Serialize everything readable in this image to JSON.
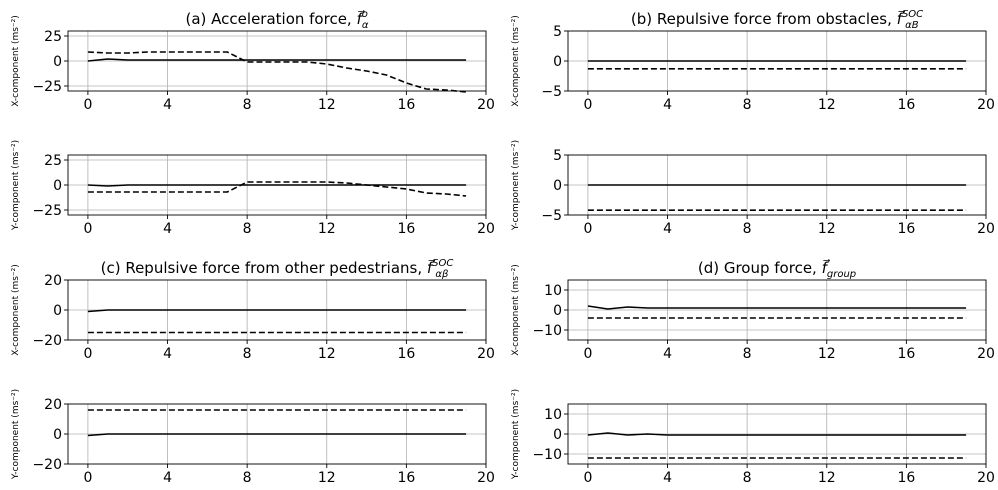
{
  "chart_data": [
    {
      "type": "line",
      "panel": "a",
      "title": "(a) Acceleration force, f⃗α⁰",
      "title_parts": {
        "prefix": "(a) Acceleration force, ",
        "symbol": "f",
        "sub": "α",
        "sup": "o"
      },
      "xlabel": "",
      "ylabel": "X-component (ms⁻²)",
      "xlim": [
        -1,
        20
      ],
      "ylim": [
        -30,
        30
      ],
      "grid": true,
      "xticks": [
        0,
        4,
        8,
        12,
        16,
        20
      ],
      "yticks": [
        25,
        0,
        -25
      ],
      "x": [
        0,
        1,
        2,
        3,
        4,
        5,
        6,
        7,
        8,
        9,
        10,
        11,
        12,
        13,
        14,
        15,
        16,
        17,
        18,
        19
      ],
      "series": [
        {
          "style": "solid",
          "values": [
            0,
            2,
            1,
            1,
            1,
            1,
            1,
            1,
            1,
            1,
            1,
            1,
            1,
            1,
            1,
            1,
            1,
            1,
            1,
            1
          ]
        },
        {
          "style": "dashed",
          "values": [
            9,
            8,
            8,
            9,
            9,
            9,
            9,
            9,
            -1,
            -1,
            -1,
            -1,
            -3,
            -7,
            -10,
            -14,
            -22,
            -28,
            -29,
            -31
          ]
        }
      ]
    },
    {
      "type": "line",
      "panel": "a",
      "xlabel": "",
      "ylabel": "Y-component (ms⁻²)",
      "xlim": [
        -1,
        20
      ],
      "ylim": [
        -30,
        30
      ],
      "grid": true,
      "xticks": [
        0,
        4,
        8,
        12,
        16,
        20
      ],
      "yticks": [
        25,
        0,
        -25
      ],
      "x": [
        0,
        1,
        2,
        3,
        4,
        5,
        6,
        7,
        8,
        9,
        10,
        11,
        12,
        13,
        14,
        15,
        16,
        17,
        18,
        19
      ],
      "series": [
        {
          "style": "solid",
          "values": [
            0,
            -1,
            0,
            0,
            0,
            0,
            0,
            0,
            0,
            0,
            0,
            0,
            0,
            0,
            0,
            0,
            0,
            0,
            0,
            0
          ]
        },
        {
          "style": "dashed",
          "values": [
            -7,
            -7,
            -7,
            -7,
            -7,
            -7,
            -7,
            -7,
            3,
            3,
            3,
            3,
            3,
            2,
            0,
            -2,
            -4,
            -8,
            -9,
            -11
          ]
        }
      ]
    },
    {
      "type": "line",
      "panel": "b",
      "title": "(b) Repulsive force from obstacles, f⃗αBˢᵒᶜ",
      "title_parts": {
        "prefix": "(b) Repulsive force from obstacles, ",
        "symbol": "f",
        "sub": "αB",
        "sup": "SOC"
      },
      "xlabel": "",
      "ylabel": "X-component (ms⁻²)",
      "xlim": [
        -1,
        20
      ],
      "ylim": [
        -5,
        5
      ],
      "grid": true,
      "xticks": [
        0,
        4,
        8,
        12,
        16,
        20
      ],
      "yticks": [
        5,
        0,
        -5
      ],
      "x": [
        0,
        1,
        2,
        3,
        4,
        5,
        6,
        7,
        8,
        9,
        10,
        11,
        12,
        13,
        14,
        15,
        16,
        17,
        18,
        19
      ],
      "series": [
        {
          "style": "solid",
          "values": [
            0,
            0,
            0,
            0,
            0,
            0,
            0,
            0,
            0,
            0,
            0,
            0,
            0,
            0,
            0,
            0,
            0,
            0,
            0,
            0
          ]
        },
        {
          "style": "dashed",
          "values": [
            -1.3,
            -1.3,
            -1.3,
            -1.3,
            -1.3,
            -1.3,
            -1.3,
            -1.3,
            -1.3,
            -1.3,
            -1.3,
            -1.3,
            -1.3,
            -1.3,
            -1.3,
            -1.3,
            -1.3,
            -1.3,
            -1.3,
            -1.3
          ]
        }
      ]
    },
    {
      "type": "line",
      "panel": "b",
      "xlabel": "",
      "ylabel": "Y-component (ms⁻²)",
      "xlim": [
        -1,
        20
      ],
      "ylim": [
        -5,
        5
      ],
      "grid": true,
      "xticks": [
        0,
        4,
        8,
        12,
        16,
        20
      ],
      "yticks": [
        5,
        0,
        -5
      ],
      "x": [
        0,
        1,
        2,
        3,
        4,
        5,
        6,
        7,
        8,
        9,
        10,
        11,
        12,
        13,
        14,
        15,
        16,
        17,
        18,
        19
      ],
      "series": [
        {
          "style": "solid",
          "values": [
            0,
            0,
            0,
            0,
            0,
            0,
            0,
            0,
            0,
            0,
            0,
            0,
            0,
            0,
            0,
            0,
            0,
            0,
            0,
            0
          ]
        },
        {
          "style": "dashed",
          "values": [
            -4.2,
            -4.2,
            -4.2,
            -4.2,
            -4.2,
            -4.2,
            -4.2,
            -4.2,
            -4.2,
            -4.2,
            -4.2,
            -4.2,
            -4.2,
            -4.2,
            -4.2,
            -4.2,
            -4.2,
            -4.2,
            -4.2,
            -4.2
          ]
        }
      ]
    },
    {
      "type": "line",
      "panel": "c",
      "title": "(c) Repulsive force from other pedestrians, f⃗αβˢᵒᶜ",
      "title_parts": {
        "prefix": "(c) Repulsive force from other pedestrians, ",
        "symbol": "f",
        "sub": "αβ",
        "sup": "SOC"
      },
      "xlabel": "",
      "ylabel": "X-component (ms⁻²)",
      "xlim": [
        -1,
        20
      ],
      "ylim": [
        -20,
        20
      ],
      "grid": true,
      "xticks": [
        0,
        4,
        8,
        12,
        16,
        20
      ],
      "yticks": [
        20,
        0,
        -20
      ],
      "x": [
        0,
        1,
        2,
        3,
        4,
        5,
        6,
        7,
        8,
        9,
        10,
        11,
        12,
        13,
        14,
        15,
        16,
        17,
        18,
        19
      ],
      "series": [
        {
          "style": "solid",
          "values": [
            -1,
            0,
            0,
            0,
            0,
            0,
            0,
            0,
            0,
            0,
            0,
            0,
            0,
            0,
            0,
            0,
            0,
            0,
            0,
            0
          ]
        },
        {
          "style": "dashed",
          "values": [
            -15,
            -15,
            -15,
            -15,
            -15,
            -15,
            -15,
            -15,
            -15,
            -15,
            -15,
            -15,
            -15,
            -15,
            -15,
            -15,
            -15,
            -15,
            -15,
            -15
          ]
        }
      ]
    },
    {
      "type": "line",
      "panel": "c",
      "xlabel": "",
      "ylabel": "Y-component (ms⁻²)",
      "xlim": [
        -1,
        20
      ],
      "ylim": [
        -20,
        20
      ],
      "grid": true,
      "xticks": [
        0,
        4,
        8,
        12,
        16,
        20
      ],
      "yticks": [
        20,
        0,
        -20
      ],
      "x": [
        0,
        1,
        2,
        3,
        4,
        5,
        6,
        7,
        8,
        9,
        10,
        11,
        12,
        13,
        14,
        15,
        16,
        17,
        18,
        19
      ],
      "series": [
        {
          "style": "solid",
          "values": [
            -1,
            0,
            0,
            0,
            0,
            0,
            0,
            0,
            0,
            0,
            0,
            0,
            0,
            0,
            0,
            0,
            0,
            0,
            0,
            0
          ]
        },
        {
          "style": "dashed",
          "values": [
            16,
            16,
            16,
            16,
            16,
            16,
            16,
            16,
            16,
            16,
            16,
            16,
            16,
            16,
            16,
            16,
            16,
            16,
            16,
            16
          ]
        }
      ]
    },
    {
      "type": "line",
      "panel": "d",
      "title": "(d) Group force, f⃗group",
      "title_parts": {
        "prefix": "(d) Group force, ",
        "symbol": "f",
        "sub": "group",
        "sup": ""
      },
      "xlabel": "",
      "ylabel": "X-component (ms⁻²)",
      "xlim": [
        -1,
        20
      ],
      "ylim": [
        -15,
        15
      ],
      "grid": true,
      "xticks": [
        0,
        4,
        8,
        12,
        16,
        20
      ],
      "yticks": [
        10,
        0,
        -10
      ],
      "x": [
        0,
        1,
        2,
        3,
        4,
        5,
        6,
        7,
        8,
        9,
        10,
        11,
        12,
        13,
        14,
        15,
        16,
        17,
        18,
        19
      ],
      "series": [
        {
          "style": "solid",
          "values": [
            2,
            0.5,
            1.5,
            1,
            1,
            1,
            1,
            1,
            1,
            1,
            1,
            1,
            1,
            1,
            1,
            1,
            1,
            1,
            1,
            1
          ]
        },
        {
          "style": "dashed",
          "values": [
            -4,
            -4,
            -4,
            -4,
            -4,
            -4,
            -4,
            -4,
            -4,
            -4,
            -4,
            -4,
            -4,
            -4,
            -4,
            -4,
            -4,
            -4,
            -4,
            -4
          ]
        }
      ]
    },
    {
      "type": "line",
      "panel": "d",
      "xlabel": "",
      "ylabel": "Y-component (ms⁻²)",
      "xlim": [
        -1,
        20
      ],
      "ylim": [
        -15,
        15
      ],
      "grid": true,
      "xticks": [
        0,
        4,
        8,
        12,
        16,
        20
      ],
      "yticks": [
        10,
        0,
        -10
      ],
      "x": [
        0,
        1,
        2,
        3,
        4,
        5,
        6,
        7,
        8,
        9,
        10,
        11,
        12,
        13,
        14,
        15,
        16,
        17,
        18,
        19
      ],
      "series": [
        {
          "style": "solid",
          "values": [
            -0.5,
            0.5,
            -0.5,
            0,
            -0.5,
            -0.5,
            -0.5,
            -0.5,
            -0.5,
            -0.5,
            -0.5,
            -0.5,
            -0.5,
            -0.5,
            -0.5,
            -0.5,
            -0.5,
            -0.5,
            -0.5,
            -0.5
          ]
        },
        {
          "style": "dashed",
          "values": [
            -12,
            -12,
            -12,
            -12,
            -12,
            -12,
            -12,
            -12,
            -12,
            -12,
            -12,
            -12,
            -12,
            -12,
            -12,
            -12,
            -12,
            -12,
            -12,
            -12
          ]
        }
      ]
    }
  ],
  "colors": {
    "line": "#000000",
    "grid": "#b0b0b0",
    "axes": "#000000",
    "background": "#ffffff"
  }
}
